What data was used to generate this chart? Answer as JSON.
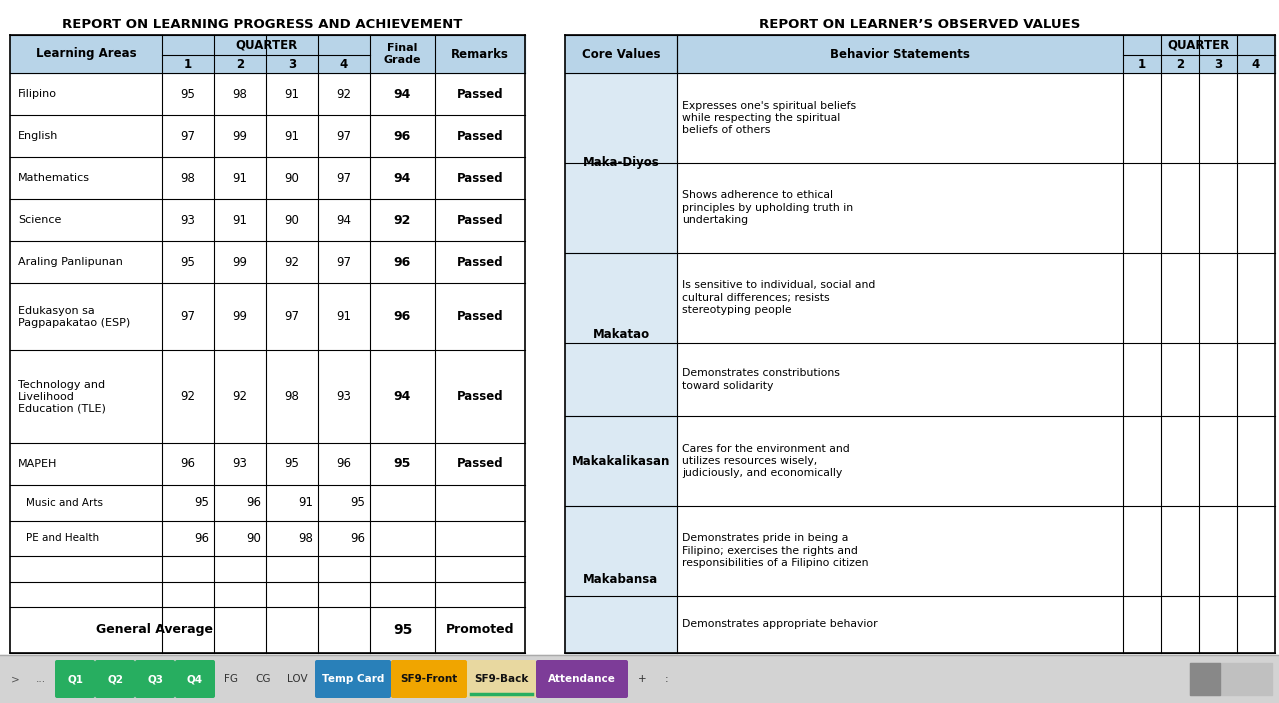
{
  "title_left": "REPORT ON LEARNING PROGRESS AND ACHIEVEMENT",
  "title_right": "REPORT ON LEARNER’S OBSERVED VALUES",
  "left_subjects": [
    {
      "name": "Filipino",
      "q1": 95,
      "q2": 98,
      "q3": 91,
      "q4": 92,
      "final": 94,
      "remark": "Passed",
      "sub": false
    },
    {
      "name": "English",
      "q1": 97,
      "q2": 99,
      "q3": 91,
      "q4": 97,
      "final": 96,
      "remark": "Passed",
      "sub": false
    },
    {
      "name": "Mathematics",
      "q1": 98,
      "q2": 91,
      "q3": 90,
      "q4": 97,
      "final": 94,
      "remark": "Passed",
      "sub": false
    },
    {
      "name": "Science",
      "q1": 93,
      "q2": 91,
      "q3": 90,
      "q4": 94,
      "final": 92,
      "remark": "Passed",
      "sub": false
    },
    {
      "name": "Araling Panlipunan",
      "q1": 95,
      "q2": 99,
      "q3": 92,
      "q4": 97,
      "final": 96,
      "remark": "Passed",
      "sub": false
    },
    {
      "name": "Edukasyon sa\nPagpapakatao (ESP)",
      "q1": 97,
      "q2": 99,
      "q3": 97,
      "q4": 91,
      "final": 96,
      "remark": "Passed",
      "sub": false
    },
    {
      "name": "Technology and\nLivelihood\nEducation (TLE)",
      "q1": 92,
      "q2": 92,
      "q3": 98,
      "q4": 93,
      "final": 94,
      "remark": "Passed",
      "sub": false
    },
    {
      "name": "MAPEH",
      "q1": 96,
      "q2": 93,
      "q3": 95,
      "q4": 96,
      "final": 95,
      "remark": "Passed",
      "sub": false
    },
    {
      "name": "Music and Arts",
      "q1": 95,
      "q2": 96,
      "q3": 91,
      "q4": 95,
      "final": null,
      "remark": null,
      "sub": true
    },
    {
      "name": "PE and Health",
      "q1": 96,
      "q2": 90,
      "q3": 98,
      "q4": 96,
      "final": null,
      "remark": null,
      "sub": true
    },
    {
      "name": "",
      "q1": null,
      "q2": null,
      "q3": null,
      "q4": null,
      "final": null,
      "remark": null,
      "sub": false
    },
    {
      "name": "",
      "q1": null,
      "q2": null,
      "q3": null,
      "q4": null,
      "final": null,
      "remark": null,
      "sub": false
    }
  ],
  "general_average": 95,
  "general_remark": "Promoted",
  "right_core_values": [
    {
      "core": "Maka-Diyos",
      "behaviors": [
        "Expresses one's spiritual beliefs\nwhile respecting the spiritual\nbeliefs of others",
        "Shows adherence to ethical\nprinciples by upholding truth in\nundertaking"
      ]
    },
    {
      "core": "Makatao",
      "behaviors": [
        "Is sensitive to individual, social and\ncultural differences; resists\nstereotyping people",
        "Demonstrates constributions\ntoward solidarity"
      ]
    },
    {
      "core": "Makakalikasan",
      "behaviors": [
        "Cares for the environment and\nutilizes resources wisely,\njudiciously, and economically"
      ]
    },
    {
      "core": "Makabansa",
      "behaviors": [
        "Demonstrates pride in being a\nFilipino; exercises the rights and\nresponsibilities of a Filipino citizen",
        "Demonstrates appropriate behavior"
      ]
    }
  ],
  "bg_color": "#ffffff",
  "header_bg": "#b8d4e8",
  "tab_bar_bg": "#d3d3d3"
}
